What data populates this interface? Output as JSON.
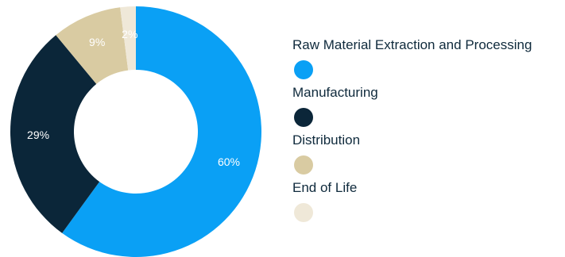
{
  "chart_data": {
    "type": "pie",
    "style": "donut",
    "categories": [
      "Raw Material Extraction and Processing",
      "Manufacturing",
      "Distribution",
      "End of Life"
    ],
    "values": [
      60,
      29,
      9,
      2
    ],
    "data_labels": [
      "60%",
      "29%",
      "9%",
      "2%"
    ],
    "colors": [
      "#0aa0f5",
      "#0b2639",
      "#d9cba2",
      "#efe8d8"
    ],
    "title": "",
    "legend_position": "right",
    "start_angle": "12 o'clock",
    "direction": "clockwise"
  }
}
